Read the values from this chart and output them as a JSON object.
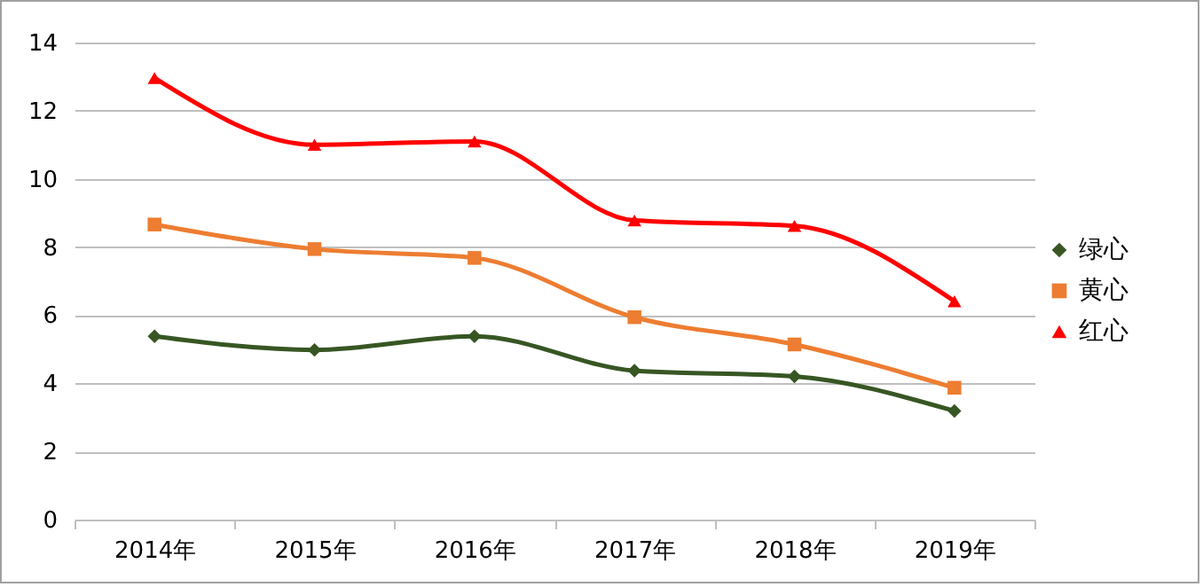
{
  "chart_data": {
    "type": "line",
    "categories": [
      "2014年",
      "2015年",
      "2016年",
      "2017年",
      "2018年",
      "2019年"
    ],
    "series": [
      {
        "name": "绿心",
        "color": "#375623",
        "marker": "diamond",
        "values": [
          5.38,
          4.98,
          5.38,
          4.37,
          4.2,
          3.19
        ]
      },
      {
        "name": "黄心",
        "color": "#ed7d31",
        "marker": "square",
        "values": [
          8.66,
          7.94,
          7.68,
          5.94,
          5.14,
          3.87
        ]
      },
      {
        "name": "红心",
        "color": "#ff0000",
        "marker": "triangle",
        "values": [
          12.96,
          11.0,
          11.1,
          8.78,
          8.62,
          6.41
        ]
      }
    ],
    "ylim": [
      0,
      14
    ],
    "yticks": [
      0,
      2,
      4,
      6,
      8,
      10,
      12,
      14
    ],
    "grid": "y",
    "legend": "right",
    "line_style": "solid"
  }
}
